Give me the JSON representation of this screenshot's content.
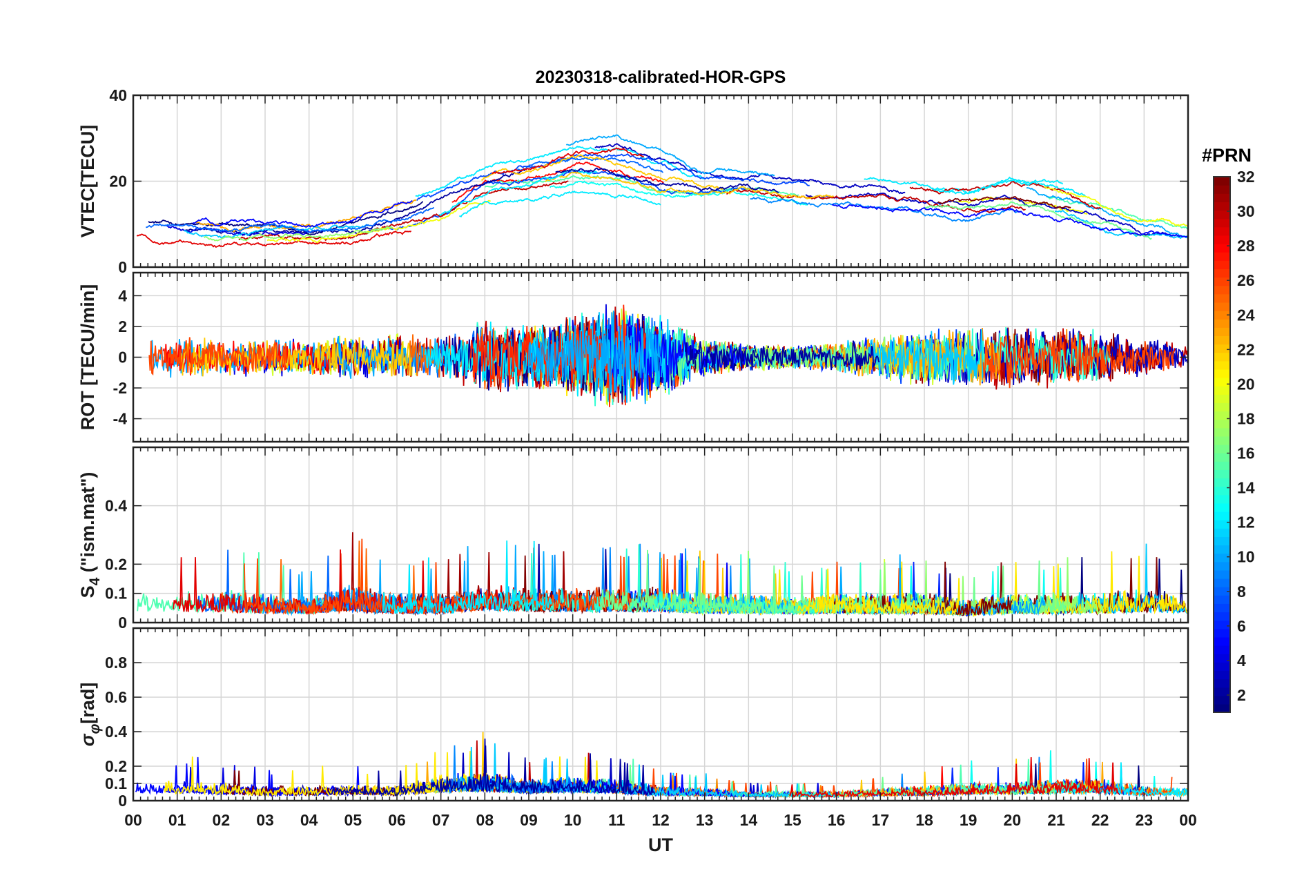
{
  "chart_data": {
    "type": "line",
    "title": "20230318-calibrated-HOR-GPS",
    "xlabel": "UT",
    "x_ticks": [
      "00",
      "01",
      "02",
      "03",
      "04",
      "05",
      "06",
      "07",
      "08",
      "09",
      "10",
      "11",
      "12",
      "13",
      "14",
      "15",
      "16",
      "17",
      "18",
      "19",
      "20",
      "21",
      "22",
      "23",
      "00"
    ],
    "xlim": [
      0,
      24
    ],
    "grid": true,
    "colorbar": {
      "title": "#PRN",
      "range": [
        1,
        32
      ],
      "ticks": [
        "2",
        "4",
        "6",
        "8",
        "10",
        "12",
        "14",
        "16",
        "18",
        "20",
        "22",
        "24",
        "26",
        "28",
        "30",
        "32"
      ],
      "tick_values": [
        2,
        4,
        6,
        8,
        10,
        12,
        14,
        16,
        18,
        20,
        22,
        24,
        26,
        28,
        30,
        32
      ],
      "colormap": "jet"
    },
    "panels": [
      {
        "ylabel": "VTEC[TECU]",
        "ylim": [
          0,
          40
        ],
        "ytick_values": [
          0,
          20,
          40
        ],
        "ytick_labels": [
          "0",
          "20",
          "40"
        ],
        "envelope_hours": [
          0,
          1,
          2,
          3,
          4,
          5,
          6,
          7,
          8,
          9,
          10,
          11,
          12,
          13,
          14,
          15,
          16,
          17,
          18,
          19,
          20,
          21,
          22,
          23,
          24
        ],
        "envelope_mean": [
          10,
          9,
          8,
          8,
          8,
          9,
          12,
          15,
          20,
          22,
          24,
          24,
          21,
          19,
          19,
          18,
          17,
          18,
          16,
          15,
          17,
          15,
          12,
          9,
          8
        ],
        "envelope_spread": [
          3,
          3,
          3,
          3,
          3,
          4,
          5,
          6,
          5,
          6,
          6,
          7,
          6,
          4,
          3,
          3,
          3,
          3,
          3,
          3,
          4,
          4,
          4,
          3,
          2
        ],
        "noise": 0.8
      },
      {
        "ylabel": "ROT [TECU/min]",
        "ylim": [
          -5.5,
          5.5
        ],
        "ytick_values": [
          -4,
          -2,
          0,
          2,
          4
        ],
        "ytick_labels": [
          "-4",
          "-2",
          "0",
          "2",
          "4"
        ],
        "envelope_hours": [
          0,
          1,
          2,
          3,
          4,
          5,
          6,
          7,
          8,
          9,
          10,
          11,
          12,
          13,
          14,
          15,
          16,
          17,
          18,
          19,
          20,
          21,
          22,
          23,
          24
        ],
        "envelope_mean": [
          0,
          0,
          0,
          0,
          0,
          0,
          0,
          0,
          0,
          0,
          0,
          0,
          0,
          0,
          0,
          0,
          0,
          0,
          0,
          0,
          0,
          0,
          0,
          0,
          0
        ],
        "envelope_spread": [
          0.8,
          0.9,
          0.9,
          0.8,
          0.8,
          1.0,
          1.1,
          0.9,
          1.6,
          1.4,
          1.8,
          2.4,
          1.8,
          0.8,
          0.6,
          0.5,
          0.6,
          1.0,
          1.2,
          1.3,
          1.4,
          1.3,
          1.2,
          0.8,
          0.6
        ],
        "noise": 1.0
      },
      {
        "ylabel": "S4 (\"ism.mat\")",
        "ylabel_main": "S",
        "ylabel_sub": "4",
        "ylabel_rest": " (\"ism.mat\")",
        "ylim": [
          0,
          0.6
        ],
        "ytick_values": [
          0,
          0.1,
          0.2,
          0.4
        ],
        "ytick_labels": [
          "0",
          "0.1",
          "0.2",
          "0.4"
        ],
        "envelope_hours": [
          0,
          1,
          2,
          3,
          4,
          5,
          6,
          7,
          8,
          9,
          10,
          11,
          12,
          13,
          14,
          15,
          16,
          17,
          18,
          19,
          20,
          21,
          22,
          23,
          24
        ],
        "envelope_mean": [
          0.06,
          0.06,
          0.06,
          0.05,
          0.05,
          0.06,
          0.05,
          0.05,
          0.07,
          0.06,
          0.06,
          0.06,
          0.06,
          0.05,
          0.05,
          0.05,
          0.05,
          0.05,
          0.05,
          0.04,
          0.05,
          0.05,
          0.05,
          0.06,
          0.05
        ],
        "envelope_spread": [
          0.05,
          0.05,
          0.06,
          0.05,
          0.04,
          0.07,
          0.05,
          0.05,
          0.06,
          0.06,
          0.06,
          0.06,
          0.06,
          0.05,
          0.05,
          0.04,
          0.05,
          0.05,
          0.05,
          0.04,
          0.05,
          0.05,
          0.05,
          0.06,
          0.04
        ],
        "noise": 0.03
      },
      {
        "ylabel": "σφ[rad]",
        "ylabel_main": "σ",
        "ylabel_sub": "φ",
        "ylabel_rest": "[rad]",
        "ylim": [
          0,
          1
        ],
        "ytick_values": [
          0,
          0.1,
          0.2,
          0.4,
          0.6,
          0.8
        ],
        "ytick_labels": [
          "0",
          "0.1",
          "0.2",
          "0.4",
          "0.6",
          "0.8"
        ],
        "envelope_hours": [
          0,
          1,
          2,
          3,
          4,
          5,
          6,
          7,
          8,
          9,
          10,
          11,
          12,
          13,
          14,
          15,
          16,
          17,
          18,
          19,
          20,
          21,
          22,
          23,
          24
        ],
        "envelope_mean": [
          0.07,
          0.07,
          0.06,
          0.05,
          0.05,
          0.06,
          0.05,
          0.08,
          0.09,
          0.07,
          0.08,
          0.07,
          0.05,
          0.05,
          0.04,
          0.04,
          0.04,
          0.05,
          0.05,
          0.06,
          0.06,
          0.07,
          0.07,
          0.05,
          0.05
        ],
        "envelope_spread": [
          0.05,
          0.05,
          0.05,
          0.04,
          0.04,
          0.04,
          0.04,
          0.07,
          0.08,
          0.06,
          0.06,
          0.06,
          0.04,
          0.03,
          0.02,
          0.02,
          0.02,
          0.03,
          0.04,
          0.05,
          0.05,
          0.06,
          0.06,
          0.04,
          0.03
        ],
        "noise": 0.04
      }
    ]
  }
}
